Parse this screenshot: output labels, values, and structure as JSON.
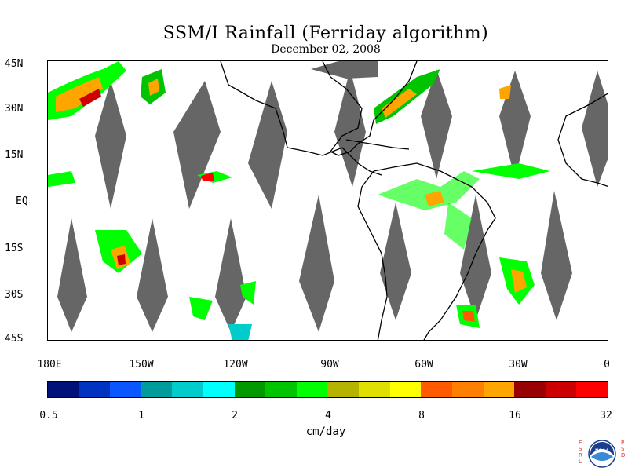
{
  "title": "SSM/I Rainfall (Ferriday algorithm)",
  "subtitle": "December 02, 2008",
  "lat_labels": [
    "45N",
    "30N",
    "15N",
    "EQ",
    "15S",
    "30S",
    "45S"
  ],
  "lon_labels": [
    "180E",
    "150W",
    "120W",
    "90W",
    "60W",
    "30W",
    "0"
  ],
  "colorbar": {
    "colors": [
      "#00127a",
      "#0033c0",
      "#0a57ff",
      "#009b9b",
      "#00cccc",
      "#00ffff",
      "#009900",
      "#00c400",
      "#00ff00",
      "#b4b400",
      "#e0e000",
      "#ffff00",
      "#ff5a00",
      "#ff8000",
      "#ffa500",
      "#990000",
      "#cc0000",
      "#ff0000"
    ],
    "ticks": [
      "0.5",
      "1",
      "2",
      "4",
      "8",
      "16",
      "32"
    ],
    "units": "cm/day"
  },
  "logo": {
    "left_letters": "ESRL",
    "right_letters": "PSD",
    "center_text": "NOAA"
  },
  "colors": {
    "data_gap": "#666666",
    "coastline": "#000000"
  }
}
